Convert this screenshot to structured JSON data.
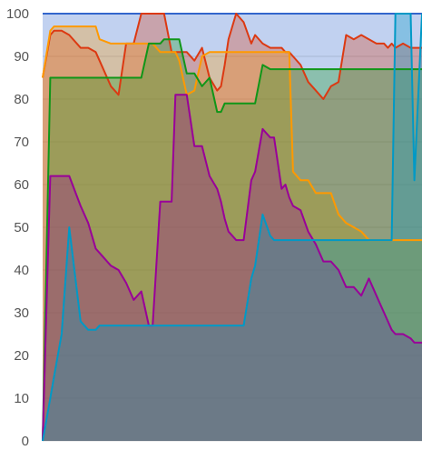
{
  "chart_data": {
    "type": "area",
    "title": "",
    "xlabel": "",
    "ylabel": "",
    "ylim": [
      0,
      100
    ],
    "yticks": [
      0,
      10,
      20,
      30,
      40,
      50,
      60,
      70,
      80,
      90,
      100
    ],
    "grid": true,
    "legend": "none",
    "x": [
      0,
      2,
      3,
      5,
      7,
      10,
      12,
      14,
      15,
      18,
      20,
      22,
      24,
      26,
      28,
      29,
      31,
      32,
      34,
      35,
      36,
      38,
      40,
      42,
      44,
      46,
      47,
      48,
      49,
      51,
      53,
      55,
      56,
      58,
      60,
      61,
      62,
      63,
      64,
      65,
      66,
      68,
      70,
      72,
      74,
      76,
      78,
      80,
      82,
      84,
      86,
      88,
      89,
      90,
      91,
      92,
      93,
      95,
      97,
      98,
      100
    ],
    "series": [
      {
        "color": "#3366cc",
        "values": [
          100,
          100,
          100,
          100,
          100,
          100,
          100,
          100,
          100,
          100,
          100,
          100,
          100,
          100,
          100,
          100,
          100,
          100,
          100,
          100,
          100,
          100,
          100,
          100,
          100,
          100,
          100,
          100,
          100,
          100,
          100,
          100,
          100,
          100,
          100,
          100,
          100,
          100,
          100,
          100,
          100,
          100,
          100,
          100,
          100,
          100,
          100,
          100,
          100,
          100,
          100,
          100,
          100,
          100,
          100,
          100,
          100,
          100,
          100,
          100,
          100
        ]
      },
      {
        "color": "#dc3912",
        "values": [
          85,
          95,
          96,
          96,
          95,
          92,
          92,
          91,
          89,
          83,
          81,
          93,
          93,
          100,
          100,
          100,
          100,
          100,
          91,
          91,
          91,
          91,
          89,
          92,
          85,
          82,
          83,
          88,
          94,
          100,
          98,
          93,
          95,
          93,
          92,
          92,
          92,
          92,
          91,
          91,
          90,
          88,
          84,
          82,
          80,
          83,
          84,
          95,
          94,
          95,
          94,
          93,
          93,
          93,
          92,
          93,
          92,
          93,
          92,
          92,
          92
        ]
      },
      {
        "color": "#ff9900",
        "values": [
          85,
          96,
          97,
          97,
          97,
          97,
          97,
          97,
          94,
          93,
          93,
          93,
          93,
          93,
          93,
          93,
          91,
          91,
          91,
          91,
          89,
          81,
          82,
          90,
          91,
          91,
          91,
          91,
          91,
          91,
          91,
          91,
          91,
          91,
          91,
          91,
          91,
          91,
          91,
          91,
          63,
          61,
          61,
          58,
          58,
          58,
          53,
          51,
          50,
          49,
          47,
          47,
          47,
          47,
          47,
          47,
          47,
          47,
          47,
          47,
          47
        ]
      },
      {
        "color": "#109618",
        "values": [
          0,
          85,
          85,
          85,
          85,
          85,
          85,
          85,
          85,
          85,
          85,
          85,
          85,
          85,
          93,
          93,
          93,
          94,
          94,
          94,
          94,
          86,
          86,
          83,
          85,
          77,
          77,
          79,
          79,
          79,
          79,
          79,
          79,
          88,
          87,
          87,
          87,
          87,
          87,
          87,
          87,
          87,
          87,
          87,
          87,
          87,
          87,
          87,
          87,
          87,
          87,
          87,
          87,
          87,
          87,
          87,
          87,
          87,
          87,
          87,
          87
        ]
      },
      {
        "color": "#990099",
        "values": [
          0,
          62,
          62,
          62,
          62,
          55,
          51,
          45,
          44,
          41,
          40,
          37,
          33,
          35,
          27,
          27,
          56,
          56,
          56,
          81,
          81,
          81,
          69,
          69,
          62,
          59,
          56,
          52,
          49,
          47,
          47,
          61,
          63,
          73,
          71,
          71,
          65,
          59,
          60,
          57,
          55,
          54,
          49,
          46,
          42,
          42,
          40,
          36,
          36,
          34,
          38,
          34,
          32,
          30,
          28,
          26,
          25,
          25,
          24,
          23,
          23
        ]
      },
      {
        "color": "#0099c6",
        "values": [
          0,
          10,
          15,
          25,
          50,
          28,
          26,
          26,
          27,
          27,
          27,
          27,
          27,
          27,
          27,
          27,
          27,
          27,
          27,
          27,
          27,
          27,
          27,
          27,
          27,
          27,
          27,
          27,
          27,
          27,
          27,
          38,
          41,
          53,
          48,
          47,
          47,
          47,
          47,
          47,
          47,
          47,
          47,
          47,
          47,
          47,
          47,
          47,
          47,
          47,
          47,
          47,
          47,
          47,
          47,
          47,
          100,
          100,
          100,
          61,
          100
        ]
      }
    ]
  }
}
